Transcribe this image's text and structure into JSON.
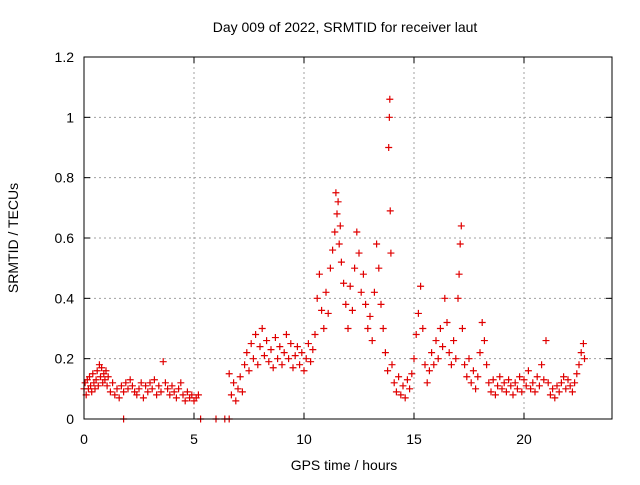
{
  "chart_data": {
    "type": "scatter",
    "title": "Day 009 of 2022, SRMTID for receiver laut",
    "xlabel": "GPS time / hours",
    "ylabel": "SRMTID / TECUs",
    "xlim": [
      0,
      24
    ],
    "ylim": [
      0,
      1.2
    ],
    "x_ticks": [
      0,
      5,
      10,
      15,
      20
    ],
    "y_ticks": [
      0,
      0.2,
      0.4,
      0.6,
      0.8,
      1,
      1.2
    ],
    "x_tick_labels": [
      "0",
      "5",
      "10",
      "15",
      "20"
    ],
    "y_tick_labels": [
      "0",
      "0.2",
      "0.4",
      "0.6",
      "0.8",
      "1",
      "1.2"
    ],
    "grid": true,
    "marker": "+",
    "color": "#e00000",
    "series": [
      {
        "name": "SRMTID",
        "points": [
          [
            0.0,
            0.1
          ],
          [
            0.05,
            0.12
          ],
          [
            0.1,
            0.08
          ],
          [
            0.15,
            0.13
          ],
          [
            0.2,
            0.1
          ],
          [
            0.25,
            0.14
          ],
          [
            0.3,
            0.11
          ],
          [
            0.35,
            0.09
          ],
          [
            0.4,
            0.15
          ],
          [
            0.45,
            0.12
          ],
          [
            0.5,
            0.1
          ],
          [
            0.55,
            0.13
          ],
          [
            0.6,
            0.16
          ],
          [
            0.65,
            0.11
          ],
          [
            0.7,
            0.18
          ],
          [
            0.75,
            0.14
          ],
          [
            0.8,
            0.17
          ],
          [
            0.85,
            0.12
          ],
          [
            0.9,
            0.15
          ],
          [
            0.95,
            0.13
          ],
          [
            1.0,
            0.16
          ],
          [
            1.05,
            0.11
          ],
          [
            1.1,
            0.14
          ],
          [
            1.2,
            0.09
          ],
          [
            1.3,
            0.12
          ],
          [
            1.4,
            0.08
          ],
          [
            1.5,
            0.1
          ],
          [
            1.6,
            0.07
          ],
          [
            1.7,
            0.11
          ],
          [
            1.8,
            0.09
          ],
          [
            1.9,
            0.12
          ],
          [
            2.0,
            0.1
          ],
          [
            2.1,
            0.13
          ],
          [
            2.2,
            0.11
          ],
          [
            2.3,
            0.09
          ],
          [
            2.4,
            0.08
          ],
          [
            2.5,
            0.1
          ],
          [
            2.6,
            0.12
          ],
          [
            2.7,
            0.07
          ],
          [
            2.8,
            0.11
          ],
          [
            2.9,
            0.09
          ],
          [
            3.0,
            0.12
          ],
          [
            3.1,
            0.1
          ],
          [
            3.2,
            0.13
          ],
          [
            3.3,
            0.08
          ],
          [
            3.4,
            0.11
          ],
          [
            3.5,
            0.09
          ],
          [
            3.6,
            0.19
          ],
          [
            3.7,
            0.12
          ],
          [
            3.8,
            0.1
          ],
          [
            3.9,
            0.08
          ],
          [
            4.0,
            0.11
          ],
          [
            4.1,
            0.09
          ],
          [
            4.2,
            0.07
          ],
          [
            4.3,
            0.1
          ],
          [
            4.4,
            0.12
          ],
          [
            4.5,
            0.08
          ],
          [
            4.6,
            0.06
          ],
          [
            4.7,
            0.09
          ],
          [
            4.8,
            0.07
          ],
          [
            4.9,
            0.08
          ],
          [
            5.0,
            0.06
          ],
          [
            5.1,
            0.07
          ],
          [
            5.2,
            0.08
          ],
          [
            1.8,
            0.0
          ],
          [
            5.3,
            0.0
          ],
          [
            6.0,
            0.0
          ],
          [
            6.4,
            0.0
          ],
          [
            6.6,
            0.0
          ],
          [
            6.6,
            0.15
          ],
          [
            6.7,
            0.08
          ],
          [
            6.8,
            0.12
          ],
          [
            6.9,
            0.06
          ],
          [
            7.0,
            0.1
          ],
          [
            7.1,
            0.14
          ],
          [
            7.2,
            0.09
          ],
          [
            7.3,
            0.18
          ],
          [
            7.4,
            0.22
          ],
          [
            7.5,
            0.16
          ],
          [
            7.6,
            0.25
          ],
          [
            7.7,
            0.2
          ],
          [
            7.8,
            0.28
          ],
          [
            7.9,
            0.18
          ],
          [
            8.0,
            0.24
          ],
          [
            8.1,
            0.3
          ],
          [
            8.2,
            0.21
          ],
          [
            8.3,
            0.26
          ],
          [
            8.4,
            0.19
          ],
          [
            8.5,
            0.23
          ],
          [
            8.6,
            0.17
          ],
          [
            8.7,
            0.27
          ],
          [
            8.8,
            0.2
          ],
          [
            8.9,
            0.24
          ],
          [
            9.0,
            0.18
          ],
          [
            9.1,
            0.22
          ],
          [
            9.2,
            0.28
          ],
          [
            9.3,
            0.2
          ],
          [
            9.4,
            0.25
          ],
          [
            9.5,
            0.17
          ],
          [
            9.6,
            0.21
          ],
          [
            9.7,
            0.24
          ],
          [
            9.8,
            0.18
          ],
          [
            9.9,
            0.22
          ],
          [
            10.0,
            0.16
          ],
          [
            10.1,
            0.2
          ],
          [
            10.2,
            0.25
          ],
          [
            10.3,
            0.19
          ],
          [
            10.4,
            0.23
          ],
          [
            10.5,
            0.28
          ],
          [
            10.6,
            0.4
          ],
          [
            10.7,
            0.48
          ],
          [
            10.8,
            0.36
          ],
          [
            10.9,
            0.3
          ],
          [
            11.0,
            0.42
          ],
          [
            11.1,
            0.35
          ],
          [
            11.2,
            0.5
          ],
          [
            11.3,
            0.56
          ],
          [
            11.4,
            0.62
          ],
          [
            11.45,
            0.75
          ],
          [
            11.5,
            0.68
          ],
          [
            11.55,
            0.72
          ],
          [
            11.6,
            0.58
          ],
          [
            11.65,
            0.64
          ],
          [
            11.7,
            0.52
          ],
          [
            11.8,
            0.45
          ],
          [
            11.9,
            0.38
          ],
          [
            12.0,
            0.3
          ],
          [
            12.1,
            0.44
          ],
          [
            12.2,
            0.36
          ],
          [
            12.3,
            0.5
          ],
          [
            12.4,
            0.62
          ],
          [
            12.5,
            0.55
          ],
          [
            12.6,
            0.42
          ],
          [
            12.7,
            0.48
          ],
          [
            12.8,
            0.38
          ],
          [
            12.9,
            0.3
          ],
          [
            13.0,
            0.34
          ],
          [
            13.1,
            0.26
          ],
          [
            13.2,
            0.42
          ],
          [
            13.3,
            0.58
          ],
          [
            13.4,
            0.5
          ],
          [
            13.5,
            0.38
          ],
          [
            13.6,
            0.3
          ],
          [
            13.7,
            0.22
          ],
          [
            13.8,
            0.16
          ],
          [
            13.85,
            0.9
          ],
          [
            13.88,
            1.0
          ],
          [
            13.9,
            1.06
          ],
          [
            13.92,
            0.69
          ],
          [
            13.95,
            0.55
          ],
          [
            14.0,
            0.18
          ],
          [
            14.1,
            0.12
          ],
          [
            14.2,
            0.09
          ],
          [
            14.3,
            0.14
          ],
          [
            14.4,
            0.08
          ],
          [
            14.5,
            0.11
          ],
          [
            14.6,
            0.07
          ],
          [
            14.7,
            0.13
          ],
          [
            14.8,
            0.1
          ],
          [
            14.9,
            0.15
          ],
          [
            15.0,
            0.2
          ],
          [
            15.1,
            0.28
          ],
          [
            15.2,
            0.35
          ],
          [
            15.3,
            0.44
          ],
          [
            15.4,
            0.3
          ],
          [
            15.5,
            0.18
          ],
          [
            15.6,
            0.12
          ],
          [
            15.7,
            0.16
          ],
          [
            15.8,
            0.22
          ],
          [
            15.9,
            0.18
          ],
          [
            16.0,
            0.26
          ],
          [
            16.1,
            0.2
          ],
          [
            16.2,
            0.3
          ],
          [
            16.3,
            0.24
          ],
          [
            16.4,
            0.4
          ],
          [
            16.5,
            0.32
          ],
          [
            16.6,
            0.22
          ],
          [
            16.7,
            0.18
          ],
          [
            16.8,
            0.26
          ],
          [
            16.9,
            0.2
          ],
          [
            17.0,
            0.4
          ],
          [
            17.05,
            0.48
          ],
          [
            17.1,
            0.58
          ],
          [
            17.15,
            0.64
          ],
          [
            17.2,
            0.3
          ],
          [
            17.3,
            0.18
          ],
          [
            17.4,
            0.14
          ],
          [
            17.5,
            0.2
          ],
          [
            17.6,
            0.12
          ],
          [
            17.7,
            0.16
          ],
          [
            17.8,
            0.1
          ],
          [
            17.9,
            0.14
          ],
          [
            18.0,
            0.22
          ],
          [
            18.1,
            0.32
          ],
          [
            18.2,
            0.26
          ],
          [
            18.3,
            0.18
          ],
          [
            18.4,
            0.12
          ],
          [
            18.5,
            0.09
          ],
          [
            18.6,
            0.13
          ],
          [
            18.7,
            0.08
          ],
          [
            18.8,
            0.11
          ],
          [
            18.9,
            0.14
          ],
          [
            19.0,
            0.1
          ],
          [
            19.1,
            0.12
          ],
          [
            19.2,
            0.09
          ],
          [
            19.3,
            0.13
          ],
          [
            19.4,
            0.11
          ],
          [
            19.5,
            0.08
          ],
          [
            19.6,
            0.12
          ],
          [
            19.7,
            0.1
          ],
          [
            19.8,
            0.14
          ],
          [
            19.9,
            0.09
          ],
          [
            20.0,
            0.13
          ],
          [
            20.1,
            0.11
          ],
          [
            20.2,
            0.16
          ],
          [
            20.3,
            0.1
          ],
          [
            20.4,
            0.12
          ],
          [
            20.5,
            0.09
          ],
          [
            20.6,
            0.14
          ],
          [
            20.7,
            0.11
          ],
          [
            20.8,
            0.18
          ],
          [
            20.9,
            0.13
          ],
          [
            21.0,
            0.26
          ],
          [
            21.1,
            0.12
          ],
          [
            21.2,
            0.08
          ],
          [
            21.3,
            0.1
          ],
          [
            21.4,
            0.07
          ],
          [
            21.5,
            0.11
          ],
          [
            21.6,
            0.09
          ],
          [
            21.7,
            0.12
          ],
          [
            21.8,
            0.14
          ],
          [
            21.9,
            0.1
          ],
          [
            22.0,
            0.13
          ],
          [
            22.1,
            0.11
          ],
          [
            22.2,
            0.09
          ],
          [
            22.3,
            0.12
          ],
          [
            22.4,
            0.15
          ],
          [
            22.5,
            0.18
          ],
          [
            22.6,
            0.22
          ],
          [
            22.7,
            0.25
          ],
          [
            22.75,
            0.2
          ]
        ]
      }
    ]
  }
}
